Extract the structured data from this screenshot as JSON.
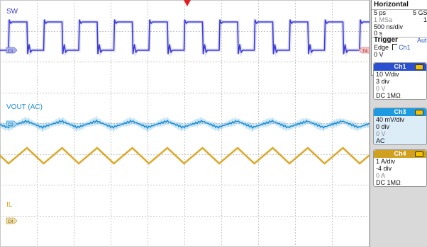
{
  "colors": {
    "ch1": "#3b3bd6",
    "ch3": "#1a8fd4",
    "ch4": "#d4a016",
    "grid": "#c8c8c8",
    "trigger_marker": "#e02020",
    "ch1_header": "#2a4fd0",
    "ch3_header": "#1e9be0",
    "ch4_header": "#d0a020"
  },
  "waveforms": {
    "sw_label": "SW",
    "vout_label": "VOUT (AC)",
    "il_label": "IL",
    "ch1_marker": "C1",
    "ch3_marker": "C3",
    "ch4_marker": "C4",
    "trigger_level_marker": "T4"
  },
  "horizontal": {
    "title": "Horizontal",
    "row1_left": "5 ps",
    "row1_right": "5 GSa",
    "row2_left": "1 MSa",
    "row2_right": "1",
    "time_per_div": "500 ns/div",
    "delay": "0 s"
  },
  "trigger": {
    "title": "Trigger",
    "mode": "Aut",
    "edge_label": "Edge",
    "slope_icon": "rising-edge-icon",
    "source": "Ch1",
    "level": "0 V"
  },
  "channels": [
    {
      "name": "Ch1",
      "scale": "10 V/div",
      "offset_div": "3 div",
      "offset": "0 V",
      "coupling": "DC 1MΩ"
    },
    {
      "name": "Ch3",
      "scale": "40 mV/div",
      "offset_div": "0 div",
      "offset": "0 V",
      "coupling": "AC"
    },
    {
      "name": "Ch4",
      "scale": "1 A/div",
      "offset_div": "-4 div",
      "offset": "0 A",
      "coupling": "DC 1MΩ"
    }
  ]
}
